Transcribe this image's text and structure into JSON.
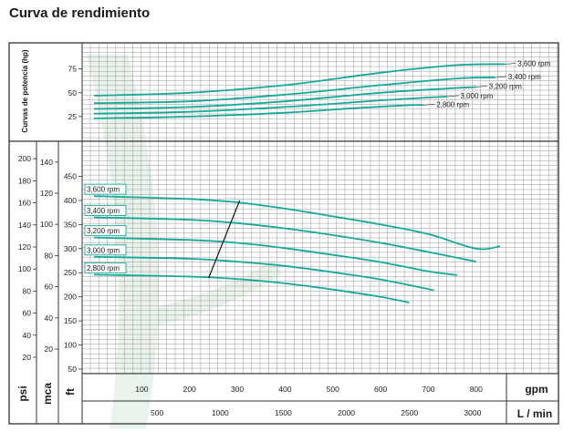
{
  "title": "Curva de rendimiento",
  "colors": {
    "curve": "#16a99a",
    "grid": "#9a9a9a",
    "frame": "#333333",
    "watermark": "#eaf2ec",
    "line": "#111111"
  },
  "chart_data": [
    {
      "type": "line",
      "title": "",
      "ylabel": "Curvas de potencia (hp)",
      "xlabel": "gpm",
      "xlim": [
        0,
        1000
      ],
      "ylim": [
        0,
        95
      ],
      "yticks": [
        {
          "v": 75,
          "label": "75"
        },
        {
          "v": 50,
          "label": "50"
        },
        {
          "v": 25,
          "label": "25"
        }
      ],
      "series": [
        {
          "name": "3,600 rpm",
          "x": [
            0,
            200,
            400,
            600,
            760,
            860
          ],
          "y": [
            47,
            50,
            58,
            71,
            79,
            80
          ]
        },
        {
          "name": "3,400 rpm",
          "x": [
            0,
            200,
            400,
            600,
            760,
            840
          ],
          "y": [
            39,
            41,
            48,
            58,
            65,
            66
          ]
        },
        {
          "name": "3,200 rpm",
          "x": [
            0,
            200,
            400,
            600,
            760,
            800
          ],
          "y": [
            33,
            35,
            41,
            50,
            55,
            56
          ]
        },
        {
          "name": "3,000 rpm",
          "x": [
            0,
            200,
            400,
            600,
            700,
            740
          ],
          "y": [
            28,
            30,
            35,
            42,
            45,
            46
          ]
        },
        {
          "name": "2,800 rpm",
          "x": [
            0,
            200,
            400,
            550,
            660,
            690
          ],
          "y": [
            23,
            25,
            29,
            34,
            37,
            37
          ]
        }
      ]
    },
    {
      "type": "line",
      "title": "",
      "xlabel": "gpm",
      "xlim": [
        0,
        1000
      ],
      "xticks": [
        100,
        200,
        300,
        400,
        500,
        600,
        700,
        800
      ],
      "x2label": "L / min",
      "x2ticks": [
        500,
        1000,
        1500,
        2000,
        2500,
        3000
      ],
      "ylabel": "ft",
      "ylim": [
        0,
        460
      ],
      "yticks": [
        50,
        100,
        150,
        200,
        250,
        300,
        350,
        400,
        450
      ],
      "ylabel_psi": "psi",
      "yticks_psi": [
        20,
        40,
        60,
        80,
        100,
        120,
        140,
        160,
        180,
        200
      ],
      "ylabel_mca": "mca",
      "yticks_mca": [
        20,
        40,
        60,
        80,
        100,
        120,
        140
      ],
      "series": [
        {
          "name": "3,600 rpm",
          "x": [
            0,
            200,
            300,
            400,
            500,
            600,
            700,
            800,
            850
          ],
          "y": [
            409,
            403,
            396,
            383,
            367,
            350,
            330,
            300,
            305
          ]
        },
        {
          "name": "3,400 rpm",
          "x": [
            0,
            200,
            300,
            400,
            500,
            600,
            700,
            800
          ],
          "y": [
            365,
            360,
            353,
            342,
            328,
            312,
            293,
            273
          ]
        },
        {
          "name": "3,200 rpm",
          "x": [
            0,
            200,
            300,
            400,
            500,
            600,
            700,
            760
          ],
          "y": [
            323,
            318,
            312,
            301,
            287,
            272,
            253,
            245
          ]
        },
        {
          "name": "3,000 rpm",
          "x": [
            0,
            200,
            300,
            400,
            500,
            600,
            700,
            710
          ],
          "y": [
            283,
            279,
            273,
            264,
            251,
            236,
            216,
            213
          ]
        },
        {
          "name": "2,800 rpm",
          "x": [
            0,
            200,
            300,
            400,
            500,
            600,
            660
          ],
          "y": [
            246,
            242,
            237,
            228,
            215,
            200,
            188
          ]
        }
      ],
      "efficiency_line": {
        "x": [
          240,
          305
        ],
        "y": [
          239,
          400
        ]
      }
    }
  ]
}
